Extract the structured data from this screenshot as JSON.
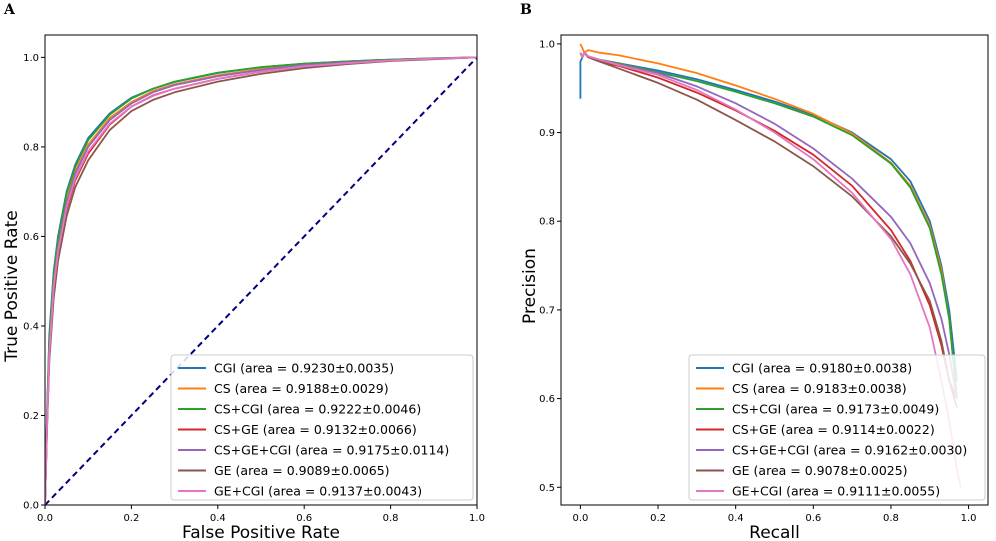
{
  "chart_data": [
    {
      "panel": "A",
      "type": "line",
      "xlabel": "False Positive Rate",
      "ylabel": "True Positive Rate",
      "xlim": [
        0.0,
        1.0
      ],
      "ylim": [
        0.0,
        1.05
      ],
      "xticks": [
        "0.0",
        "0.2",
        "0.4",
        "0.6",
        "0.8",
        "1.0"
      ],
      "yticks": [
        "0.0",
        "0.2",
        "0.4",
        "0.6",
        "0.8",
        "1.0"
      ],
      "legend_position": "lower-right",
      "diagonal": {
        "x": [
          0,
          1
        ],
        "y": [
          0,
          1
        ],
        "color": "#000080",
        "style": "dashed"
      },
      "series": [
        {
          "name": "CGI (area = 0.9230±0.0035)",
          "color": "#1f77b4",
          "x": [
            0,
            0.005,
            0.01,
            0.02,
            0.03,
            0.05,
            0.07,
            0.1,
            0.15,
            0.2,
            0.25,
            0.3,
            0.4,
            0.5,
            0.6,
            0.7,
            0.8,
            0.9,
            1.0
          ],
          "y": [
            0,
            0.22,
            0.38,
            0.52,
            0.6,
            0.7,
            0.76,
            0.82,
            0.875,
            0.91,
            0.93,
            0.945,
            0.965,
            0.978,
            0.986,
            0.991,
            0.995,
            0.998,
            1.0
          ]
        },
        {
          "name": "CS (area = 0.9188±0.0029)",
          "color": "#ff7f0e",
          "x": [
            0,
            0.005,
            0.01,
            0.02,
            0.03,
            0.05,
            0.07,
            0.1,
            0.15,
            0.2,
            0.25,
            0.3,
            0.4,
            0.5,
            0.6,
            0.7,
            0.8,
            0.9,
            1.0
          ],
          "y": [
            0,
            0.2,
            0.35,
            0.5,
            0.58,
            0.68,
            0.745,
            0.805,
            0.865,
            0.9,
            0.925,
            0.94,
            0.96,
            0.974,
            0.984,
            0.99,
            0.994,
            0.997,
            1.0
          ]
        },
        {
          "name": "CS+CGI (area = 0.9222±0.0046)",
          "color": "#2ca02c",
          "x": [
            0,
            0.005,
            0.01,
            0.02,
            0.03,
            0.05,
            0.07,
            0.1,
            0.15,
            0.2,
            0.25,
            0.3,
            0.4,
            0.5,
            0.6,
            0.7,
            0.8,
            0.9,
            1.0
          ],
          "y": [
            0,
            0.21,
            0.37,
            0.515,
            0.595,
            0.695,
            0.755,
            0.815,
            0.872,
            0.908,
            0.93,
            0.946,
            0.966,
            0.978,
            0.986,
            0.991,
            0.995,
            0.998,
            1.0
          ]
        },
        {
          "name": "CS+GE (area = 0.9132±0.0066)",
          "color": "#d62728",
          "x": [
            0,
            0.005,
            0.01,
            0.02,
            0.03,
            0.05,
            0.07,
            0.1,
            0.15,
            0.2,
            0.25,
            0.3,
            0.4,
            0.5,
            0.6,
            0.7,
            0.8,
            0.9,
            1.0
          ],
          "y": [
            0,
            0.19,
            0.33,
            0.48,
            0.56,
            0.66,
            0.725,
            0.785,
            0.85,
            0.89,
            0.915,
            0.93,
            0.952,
            0.968,
            0.98,
            0.987,
            0.993,
            0.997,
            1.0
          ]
        },
        {
          "name": "CS+GE+CGI (area = 0.9175±0.0114)",
          "color": "#9467bd",
          "x": [
            0,
            0.005,
            0.01,
            0.02,
            0.03,
            0.05,
            0.07,
            0.1,
            0.15,
            0.2,
            0.25,
            0.3,
            0.4,
            0.5,
            0.6,
            0.7,
            0.8,
            0.9,
            1.0
          ],
          "y": [
            0,
            0.2,
            0.345,
            0.495,
            0.575,
            0.675,
            0.74,
            0.8,
            0.86,
            0.897,
            0.922,
            0.938,
            0.958,
            0.972,
            0.983,
            0.989,
            0.994,
            0.997,
            1.0
          ]
        },
        {
          "name": "GE (area = 0.9089±0.0065)",
          "color": "#8c564b",
          "x": [
            0,
            0.005,
            0.01,
            0.02,
            0.03,
            0.05,
            0.07,
            0.1,
            0.15,
            0.2,
            0.25,
            0.3,
            0.4,
            0.5,
            0.6,
            0.7,
            0.8,
            0.9,
            1.0
          ],
          "y": [
            0,
            0.18,
            0.32,
            0.46,
            0.545,
            0.645,
            0.71,
            0.77,
            0.838,
            0.88,
            0.905,
            0.922,
            0.946,
            0.963,
            0.976,
            0.985,
            0.992,
            0.996,
            1.0
          ]
        },
        {
          "name": "GE+CGI (area = 0.9137±0.0043)",
          "color": "#e377c2",
          "x": [
            0,
            0.005,
            0.01,
            0.02,
            0.03,
            0.05,
            0.07,
            0.1,
            0.15,
            0.2,
            0.25,
            0.3,
            0.4,
            0.5,
            0.6,
            0.7,
            0.8,
            0.9,
            1.0
          ],
          "y": [
            0,
            0.19,
            0.335,
            0.485,
            0.565,
            0.665,
            0.73,
            0.79,
            0.852,
            0.89,
            0.914,
            0.93,
            0.952,
            0.968,
            0.98,
            0.987,
            0.993,
            0.997,
            1.0
          ]
        }
      ]
    },
    {
      "panel": "B",
      "type": "line",
      "xlabel": "Recall",
      "ylabel": "Precision",
      "xlim": [
        -0.05,
        1.05
      ],
      "ylim": [
        0.48,
        1.01
      ],
      "xticks": [
        "0.0",
        "0.2",
        "0.4",
        "0.6",
        "0.8",
        "1.0"
      ],
      "yticks": [
        "0.5",
        "0.6",
        "0.7",
        "0.8",
        "0.9",
        "1.0"
      ],
      "legend_position": "lower-right",
      "series": [
        {
          "name": "CGI (area = 0.9180±0.0038)",
          "color": "#1f77b4",
          "x": [
            0.0,
            0.0,
            0.005,
            0.01,
            0.02,
            0.05,
            0.1,
            0.2,
            0.3,
            0.4,
            0.5,
            0.6,
            0.7,
            0.8,
            0.85,
            0.9,
            0.93,
            0.95,
            0.96,
            0.97
          ],
          "y": [
            0.938,
            0.98,
            0.985,
            0.99,
            0.985,
            0.982,
            0.978,
            0.97,
            0.96,
            0.948,
            0.935,
            0.92,
            0.9,
            0.87,
            0.845,
            0.8,
            0.75,
            0.7,
            0.66,
            0.62
          ]
        },
        {
          "name": "CS (area = 0.9183±0.0038)",
          "color": "#ff7f0e",
          "x": [
            0.0,
            0.005,
            0.01,
            0.02,
            0.05,
            0.1,
            0.2,
            0.3,
            0.4,
            0.5,
            0.6,
            0.7,
            0.8,
            0.85,
            0.9,
            0.93,
            0.95,
            0.96,
            0.97
          ],
          "y": [
            1.0,
            0.995,
            0.99,
            0.993,
            0.99,
            0.987,
            0.978,
            0.967,
            0.953,
            0.938,
            0.921,
            0.899,
            0.866,
            0.84,
            0.795,
            0.745,
            0.69,
            0.645,
            0.6
          ]
        },
        {
          "name": "CS+CGI (area = 0.9173±0.0049)",
          "color": "#2ca02c",
          "x": [
            0.0,
            0.005,
            0.01,
            0.02,
            0.05,
            0.1,
            0.2,
            0.3,
            0.4,
            0.5,
            0.6,
            0.7,
            0.8,
            0.85,
            0.9,
            0.93,
            0.95,
            0.96,
            0.97
          ],
          "y": [
            0.99,
            0.985,
            0.99,
            0.986,
            0.982,
            0.978,
            0.968,
            0.958,
            0.946,
            0.933,
            0.918,
            0.897,
            0.865,
            0.838,
            0.792,
            0.74,
            0.69,
            0.645,
            0.6
          ]
        },
        {
          "name": "CS+GE (area = 0.9114±0.0022)",
          "color": "#d62728",
          "x": [
            0.0,
            0.005,
            0.01,
            0.02,
            0.05,
            0.1,
            0.2,
            0.3,
            0.4,
            0.5,
            0.6,
            0.7,
            0.8,
            0.85,
            0.9,
            0.93,
            0.95,
            0.97
          ],
          "y": [
            0.99,
            0.985,
            0.99,
            0.985,
            0.98,
            0.975,
            0.962,
            0.945,
            0.925,
            0.902,
            0.875,
            0.84,
            0.79,
            0.755,
            0.705,
            0.66,
            0.62,
            0.6
          ]
        },
        {
          "name": "CS+GE+CGI (area = 0.9162±0.0030)",
          "color": "#9467bd",
          "x": [
            0.0,
            0.005,
            0.01,
            0.02,
            0.05,
            0.1,
            0.2,
            0.3,
            0.4,
            0.5,
            0.6,
            0.7,
            0.8,
            0.85,
            0.9,
            0.93,
            0.95,
            0.97
          ],
          "y": [
            0.99,
            0.985,
            0.99,
            0.986,
            0.982,
            0.977,
            0.967,
            0.952,
            0.933,
            0.91,
            0.882,
            0.848,
            0.805,
            0.775,
            0.73,
            0.69,
            0.65,
            0.6
          ]
        },
        {
          "name": "GE (area = 0.9078±0.0025)",
          "color": "#8c564b",
          "x": [
            0.0,
            0.005,
            0.01,
            0.02,
            0.05,
            0.1,
            0.2,
            0.3,
            0.4,
            0.5,
            0.6,
            0.7,
            0.8,
            0.85,
            0.9,
            0.93,
            0.95,
            0.97
          ],
          "y": [
            0.99,
            0.985,
            0.99,
            0.985,
            0.98,
            0.972,
            0.956,
            0.937,
            0.914,
            0.89,
            0.862,
            0.828,
            0.783,
            0.752,
            0.71,
            0.665,
            0.62,
            0.59
          ]
        },
        {
          "name": "GE+CGI (area = 0.9111±0.0055)",
          "color": "#e377c2",
          "x": [
            0.0,
            0.005,
            0.01,
            0.02,
            0.05,
            0.1,
            0.2,
            0.3,
            0.4,
            0.5,
            0.6,
            0.7,
            0.8,
            0.85,
            0.9,
            0.93,
            0.95,
            0.97,
            0.98
          ],
          "y": [
            0.99,
            0.985,
            0.99,
            0.986,
            0.982,
            0.976,
            0.965,
            0.948,
            0.926,
            0.9,
            0.87,
            0.832,
            0.78,
            0.74,
            0.68,
            0.62,
            0.575,
            0.52,
            0.5
          ]
        }
      ]
    }
  ]
}
